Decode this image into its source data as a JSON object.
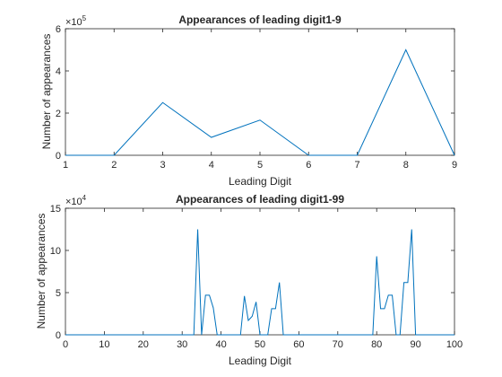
{
  "chart_data": [
    {
      "type": "line",
      "title": "Appearances of leading digit1-9",
      "xlabel": "Leading Digit",
      "ylabel": "Number of appearances",
      "xlim": [
        1,
        9
      ],
      "ylim": [
        0,
        600000
      ],
      "x_ticks": [
        "1",
        "2",
        "3",
        "4",
        "5",
        "6",
        "7",
        "8",
        "9"
      ],
      "y_ticks": [
        "0",
        "2",
        "4",
        "6"
      ],
      "y_exponent": "×10",
      "y_exponent_power": "5",
      "grid": false,
      "color": "#0072BD",
      "x": [
        1,
        2,
        3,
        4,
        5,
        6,
        7,
        8,
        9
      ],
      "y": [
        0,
        0,
        250000,
        85000,
        167000,
        0,
        0,
        500000,
        0
      ]
    },
    {
      "type": "line",
      "title": "Appearances of leading digit1-99",
      "xlabel": "Leading Digit",
      "ylabel": "Number of appearances",
      "xlim": [
        0,
        100
      ],
      "ylim": [
        0,
        150000
      ],
      "x_ticks": [
        "0",
        "10",
        "20",
        "30",
        "40",
        "50",
        "60",
        "70",
        "80",
        "90",
        "100"
      ],
      "y_ticks": [
        "0",
        "5",
        "10",
        "15"
      ],
      "y_exponent": "×10",
      "y_exponent_power": "4",
      "grid": false,
      "color": "#0072BD",
      "x": [
        0,
        10,
        20,
        30,
        33,
        34,
        35,
        36,
        37,
        38,
        39,
        40,
        45,
        46,
        47,
        48,
        49,
        50,
        51,
        52,
        53,
        54,
        55,
        56,
        57,
        60,
        70,
        79,
        80,
        81,
        82,
        83,
        84,
        85,
        86,
        87,
        88,
        89,
        90,
        100
      ],
      "y": [
        0,
        0,
        0,
        0,
        0,
        125000,
        0,
        47000,
        47000,
        32000,
        0,
        0,
        0,
        46000,
        17000,
        22000,
        39000,
        0,
        0,
        0,
        31000,
        31000,
        62000,
        0,
        0,
        0,
        0,
        0,
        93000,
        31000,
        31000,
        47000,
        47000,
        0,
        0,
        62000,
        62000,
        125000,
        0,
        0
      ]
    }
  ]
}
